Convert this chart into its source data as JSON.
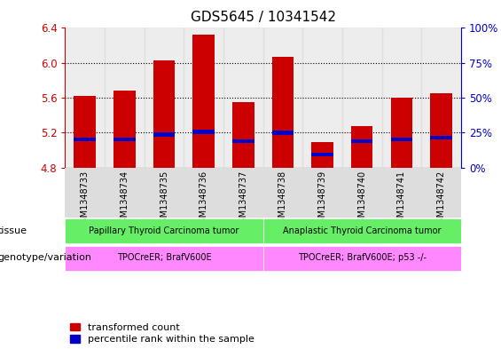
{
  "title": "GDS5645 / 10341542",
  "samples": [
    "GSM1348733",
    "GSM1348734",
    "GSM1348735",
    "GSM1348736",
    "GSM1348737",
    "GSM1348738",
    "GSM1348739",
    "GSM1348740",
    "GSM1348741",
    "GSM1348742"
  ],
  "transformed_counts": [
    5.62,
    5.68,
    6.03,
    6.32,
    5.55,
    6.07,
    5.09,
    5.27,
    5.6,
    5.65
  ],
  "percentile_ranks": [
    5.12,
    5.12,
    5.18,
    5.21,
    5.1,
    5.2,
    4.95,
    5.1,
    5.12,
    5.14
  ],
  "bar_bottom": 4.8,
  "ylim": [
    4.8,
    6.4
  ],
  "yticks": [
    4.8,
    5.2,
    5.6,
    6.0,
    6.4
  ],
  "right_yticks": [
    0,
    25,
    50,
    75,
    100
  ],
  "right_ylabels": [
    "0%",
    "25%",
    "50%",
    "75%",
    "100%"
  ],
  "bar_color": "#CC0000",
  "percentile_color": "#0000CC",
  "grid_color": "#000000",
  "bar_width": 0.55,
  "tissue_labels": [
    "Papillary Thyroid Carcinoma tumor",
    "Anaplastic Thyroid Carcinoma tumor"
  ],
  "genotype_labels": [
    "TPOCreER; BrafV600E",
    "TPOCreER; BrafV600E; p53 -/-"
  ],
  "tissue_color": "#66EE66",
  "genotype_color": "#FF88FF",
  "tissue_row_label": "tissue",
  "genotype_row_label": "genotype/variation",
  "legend_red": "transformed count",
  "legend_blue": "percentile rank within the sample",
  "ylabel_color": "#CC0000",
  "right_ylabel_color": "#0000CC",
  "bg_color": "#FFFFFF",
  "panel_bg": "#DDDDDD"
}
